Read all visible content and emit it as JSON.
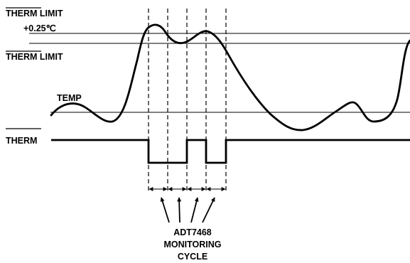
{
  "labels": {
    "therm_limit_plus_1": "THERM",
    "therm_limit_plus_2": " LIMIT",
    "therm_limit_plus_3": "+0.25℃",
    "therm_limit_1": "THERM",
    "therm_limit_2": " LIMIT",
    "temp": "TEMP",
    "therm_signal": "THERM",
    "monitor_1": "ADT7468",
    "monitor_2": "MONITORING",
    "monitor_3": "CYCLE"
  },
  "colors": {
    "line": "#000000",
    "background": "#ffffff"
  }
}
